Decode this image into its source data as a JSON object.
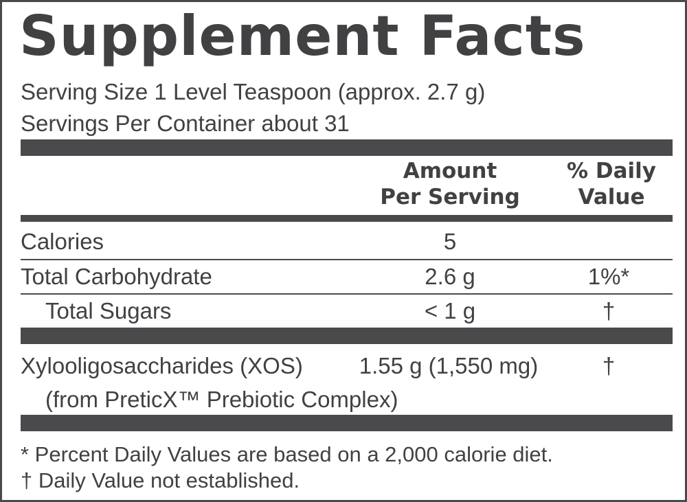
{
  "title": "Supplement Facts",
  "serving_size": "Serving Size 1 Level Teaspoon (approx. 2.7 g)",
  "servings_per_container": "Servings Per Container about 31",
  "columns": {
    "amount": [
      "Amount",
      "Per Serving"
    ],
    "daily_value": [
      "% Daily",
      "Value"
    ]
  },
  "rows": [
    {
      "name": "Calories",
      "amount": "5",
      "daily_value": null
    },
    {
      "name": "Total Carbohydrate",
      "amount": "2.6 g",
      "daily_value": "1%*"
    },
    {
      "name": "Total Sugars",
      "amount": "< 1 g",
      "daily_value": "†"
    },
    {
      "name": "Xylooligosaccharides (XOS)",
      "amount": "1.55 g (1,550 mg)",
      "daily_value": "†",
      "note": "(from PreticX™ Prebiotic Complex)"
    }
  ],
  "footnotes": [
    "* Percent Daily Values are based on a 2,000 calorie diet.",
    "† Daily Value not established."
  ]
}
